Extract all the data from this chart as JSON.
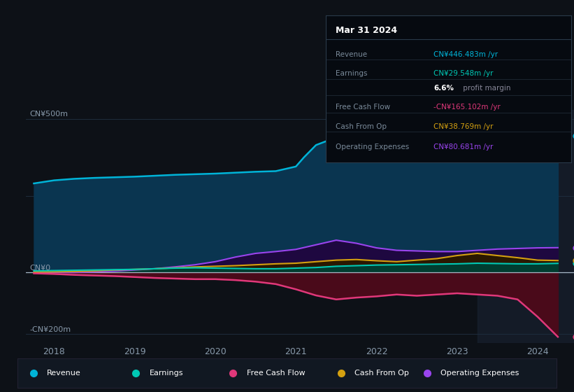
{
  "background_color": "#0d1117",
  "plot_bg_color": "#0d1117",
  "info_box_bg": "#0a0d14",
  "ylabel_top": "CN¥500m",
  "ylabel_zero": "CN¥0",
  "ylabel_bottom": "-CN¥200m",
  "ylim": [
    -230,
    530
  ],
  "xlim": [
    2017.65,
    2024.45
  ],
  "xticks": [
    2018,
    2019,
    2020,
    2021,
    2022,
    2023,
    2024
  ],
  "series": {
    "revenue": {
      "color_line": "#00b4d8",
      "color_fill": "#0a3550",
      "x": [
        2017.75,
        2018.0,
        2018.25,
        2018.5,
        2018.75,
        2019.0,
        2019.25,
        2019.5,
        2019.75,
        2020.0,
        2020.25,
        2020.5,
        2020.75,
        2021.0,
        2021.1,
        2021.25,
        2021.5,
        2021.6,
        2021.75,
        2022.0,
        2022.25,
        2022.5,
        2022.75,
        2023.0,
        2023.25,
        2023.5,
        2023.75,
        2024.0,
        2024.25
      ],
      "y": [
        290,
        300,
        305,
        308,
        310,
        312,
        315,
        318,
        320,
        322,
        325,
        328,
        330,
        345,
        375,
        415,
        440,
        455,
        450,
        455,
        458,
        450,
        448,
        460,
        472,
        462,
        456,
        440,
        446
      ]
    },
    "earnings": {
      "color_line": "#00c8b4",
      "color_fill": "#003d30",
      "x": [
        2017.75,
        2018.0,
        2018.25,
        2018.5,
        2018.75,
        2019.0,
        2019.25,
        2019.5,
        2019.75,
        2020.0,
        2020.25,
        2020.5,
        2020.75,
        2021.0,
        2021.25,
        2021.5,
        2021.75,
        2022.0,
        2022.25,
        2022.5,
        2022.75,
        2023.0,
        2023.25,
        2023.5,
        2023.75,
        2024.0,
        2024.25
      ],
      "y": [
        5,
        6,
        7,
        8,
        9,
        10,
        12,
        14,
        15,
        14,
        13,
        12,
        12,
        14,
        16,
        20,
        22,
        24,
        25,
        26,
        27,
        28,
        30,
        29,
        28,
        28,
        29.5
      ]
    },
    "free_cash_flow": {
      "color_line": "#e0387a",
      "color_fill": "#4a0a1a",
      "x": [
        2017.75,
        2018.0,
        2018.25,
        2018.5,
        2018.75,
        2019.0,
        2019.25,
        2019.5,
        2019.75,
        2020.0,
        2020.25,
        2020.5,
        2020.75,
        2021.0,
        2021.25,
        2021.5,
        2021.75,
        2022.0,
        2022.25,
        2022.5,
        2022.75,
        2023.0,
        2023.25,
        2023.5,
        2023.75,
        2024.0,
        2024.25
      ],
      "y": [
        -3,
        -5,
        -8,
        -10,
        -12,
        -15,
        -18,
        -20,
        -22,
        -22,
        -25,
        -30,
        -38,
        -55,
        -75,
        -88,
        -82,
        -78,
        -72,
        -76,
        -72,
        -68,
        -72,
        -76,
        -88,
        -145,
        -210
      ]
    },
    "cash_from_op": {
      "color_line": "#d4a010",
      "color_fill": "#2a1800",
      "x": [
        2017.75,
        2018.0,
        2018.25,
        2018.5,
        2018.75,
        2019.0,
        2019.25,
        2019.5,
        2019.75,
        2020.0,
        2020.25,
        2020.5,
        2020.75,
        2021.0,
        2021.25,
        2021.5,
        2021.75,
        2022.0,
        2022.25,
        2022.5,
        2022.75,
        2023.0,
        2023.25,
        2023.5,
        2023.75,
        2024.0,
        2024.25
      ],
      "y": [
        1,
        2,
        3,
        5,
        8,
        10,
        12,
        15,
        18,
        20,
        22,
        25,
        28,
        30,
        35,
        40,
        42,
        38,
        35,
        40,
        45,
        55,
        62,
        55,
        48,
        40,
        38.7
      ]
    },
    "operating_expenses": {
      "color_line": "#9944ee",
      "color_fill": "#1e0840",
      "x": [
        2017.75,
        2018.0,
        2018.25,
        2018.5,
        2018.75,
        2019.0,
        2019.25,
        2019.5,
        2019.75,
        2020.0,
        2020.25,
        2020.5,
        2020.75,
        2021.0,
        2021.25,
        2021.5,
        2021.75,
        2022.0,
        2022.25,
        2022.5,
        2022.75,
        2023.0,
        2023.25,
        2023.5,
        2023.75,
        2024.0,
        2024.25
      ],
      "y": [
        0,
        0,
        0,
        2,
        4,
        8,
        12,
        18,
        25,
        35,
        50,
        62,
        68,
        75,
        90,
        105,
        95,
        80,
        72,
        70,
        68,
        68,
        72,
        76,
        78,
        80,
        80.7
      ]
    }
  },
  "legend": [
    {
      "label": "Revenue",
      "color": "#00b4d8"
    },
    {
      "label": "Earnings",
      "color": "#00c8b4"
    },
    {
      "label": "Free Cash Flow",
      "color": "#e0387a"
    },
    {
      "label": "Cash From Op",
      "color": "#d4a010"
    },
    {
      "label": "Operating Expenses",
      "color": "#9944ee"
    }
  ],
  "grid_color": "#1e2d3d",
  "text_color": "#8899aa",
  "zero_line_color": "#ccddee",
  "shade_start": 2023.25,
  "shade_end": 2024.45
}
